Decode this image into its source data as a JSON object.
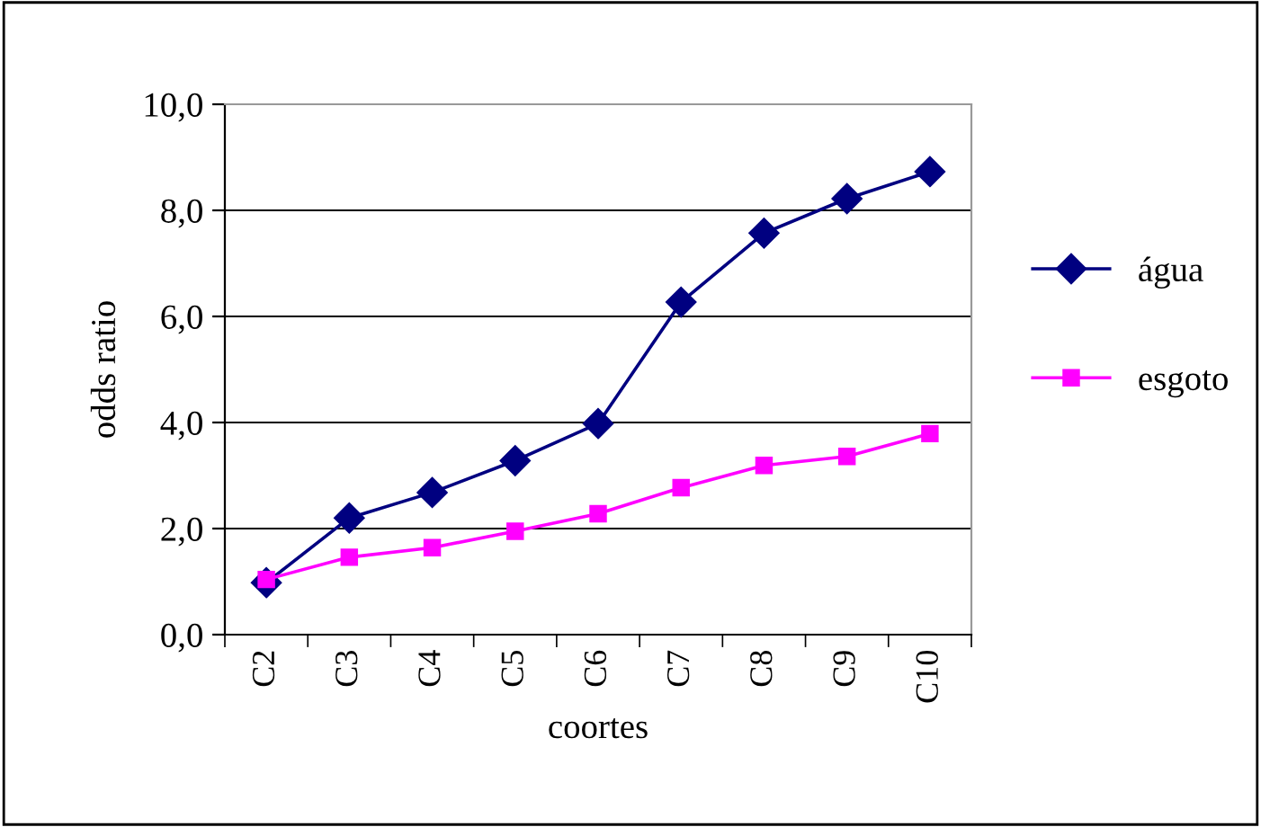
{
  "chart_data": {
    "type": "line",
    "xlabel": "coortes",
    "ylabel": "odds ratio",
    "categories": [
      "C2",
      "C3",
      "C4",
      "C5",
      "C6",
      "C7",
      "C8",
      "C9",
      "C10"
    ],
    "series": [
      {
        "name": "água",
        "color": "#000080",
        "marker": "diamond",
        "values": [
          0.98,
          2.2,
          2.68,
          3.28,
          3.98,
          6.27,
          7.57,
          8.22,
          8.73
        ]
      },
      {
        "name": "esgoto",
        "color": "#ff00ff",
        "marker": "square",
        "values": [
          1.04,
          1.46,
          1.64,
          1.95,
          2.28,
          2.77,
          3.19,
          3.36,
          3.79
        ]
      }
    ],
    "ylim": [
      0,
      10
    ],
    "yticks": [
      {
        "value": 0,
        "label": "0,0"
      },
      {
        "value": 2,
        "label": "2,0"
      },
      {
        "value": 4,
        "label": "4,0"
      },
      {
        "value": 6,
        "label": "6,0"
      },
      {
        "value": 8,
        "label": "8,0"
      },
      {
        "value": 10,
        "label": "10,0"
      }
    ],
    "grid": "y",
    "legend": "right",
    "line_style": "solid"
  }
}
